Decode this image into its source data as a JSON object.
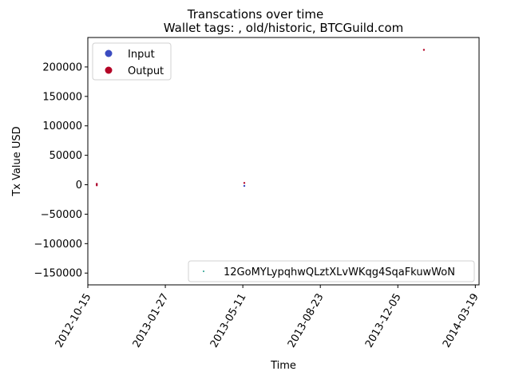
{
  "chart_data": {
    "type": "scatter",
    "suptitle": "Transcations over time",
    "title": "Wallet tags: , old/historic, BTCGuild.com",
    "xlabel": "Time",
    "ylabel": "Tx Value USD",
    "xlim": [
      "2012-10-15",
      "2014-03-24"
    ],
    "ylim": [
      -170000,
      250000
    ],
    "x_ticks": [
      "2012-10-15",
      "2013-01-27",
      "2013-05-11",
      "2013-08-23",
      "2013-12-05",
      "2014-03-19"
    ],
    "y_ticks": [
      {
        "value": 200000,
        "label": "200000"
      },
      {
        "value": 150000,
        "label": "150000"
      },
      {
        "value": 100000,
        "label": "100000"
      },
      {
        "value": 50000,
        "label": "50000"
      },
      {
        "value": 0,
        "label": "0"
      },
      {
        "value": -50000,
        "label": "−50000"
      },
      {
        "value": -100000,
        "label": "−100000"
      },
      {
        "value": -150000,
        "label": "−150000"
      }
    ],
    "legend_upper": {
      "position": "upper-left",
      "entries": [
        {
          "label": "Input",
          "color": "#3b4cc0"
        },
        {
          "label": "Output",
          "color": "#b40426"
        }
      ]
    },
    "legend_lower": {
      "position": "lower-right",
      "entries": [
        {
          "label": "12GoMYLypqhwQLztXLvWKqg4SqaFkuwWoN",
          "color": "#1f9e89"
        }
      ]
    },
    "series": [
      {
        "name": "Input",
        "color": "#3b4cc0",
        "points": [
          {
            "x": "2012-10-27",
            "y": 800
          },
          {
            "x": "2013-05-13",
            "y": -2000
          }
        ]
      },
      {
        "name": "Output",
        "color": "#b40426",
        "points": [
          {
            "x": "2012-10-27",
            "y": -1000
          },
          {
            "x": "2012-10-27",
            "y": 1500
          },
          {
            "x": "2013-05-13",
            "y": 3000
          },
          {
            "x": "2014-01-09",
            "y": 229000
          }
        ]
      }
    ]
  }
}
